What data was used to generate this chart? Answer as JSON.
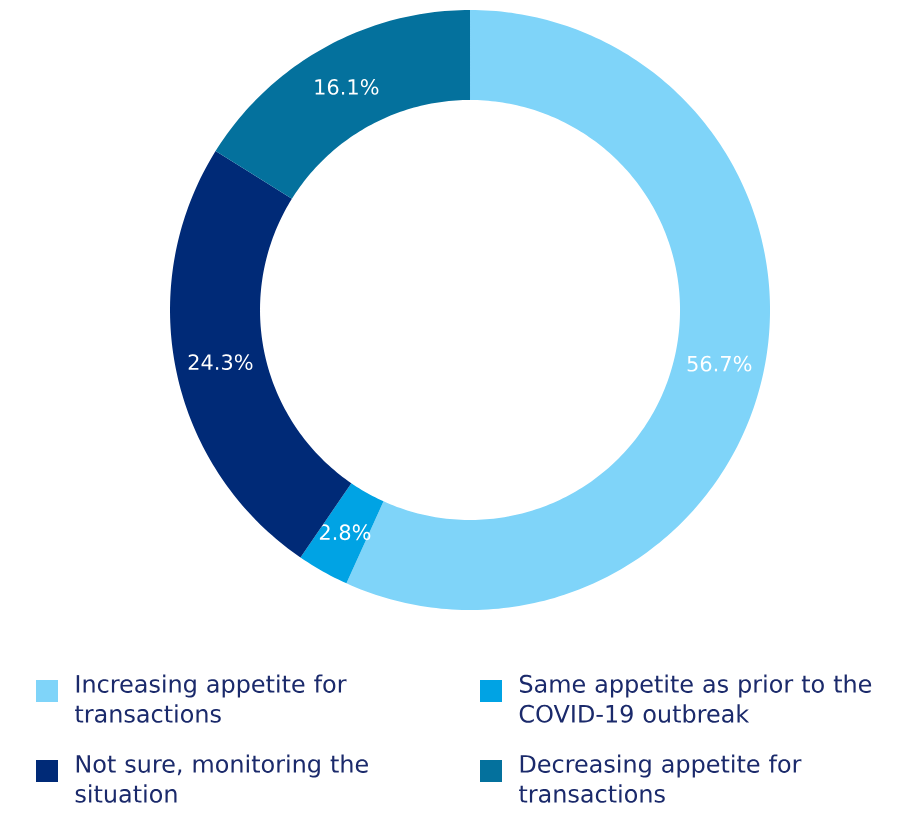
{
  "chart_data": {
    "type": "donut",
    "categories": [
      "Increasing appetite for transactions",
      "Same appetite as prior to the COVID-19 outbreak",
      "Not sure, monitoring the situation",
      "Decreasing appetite for transactions"
    ],
    "values": [
      56.7,
      2.8,
      24.3,
      16.1
    ],
    "value_labels": [
      "56.7%",
      "2.8%",
      "24.3%",
      "16.1%"
    ],
    "colors": [
      "#7fd4f9",
      "#00a3e4",
      "#002a77",
      "#04719d"
    ],
    "legend": "bottom"
  }
}
